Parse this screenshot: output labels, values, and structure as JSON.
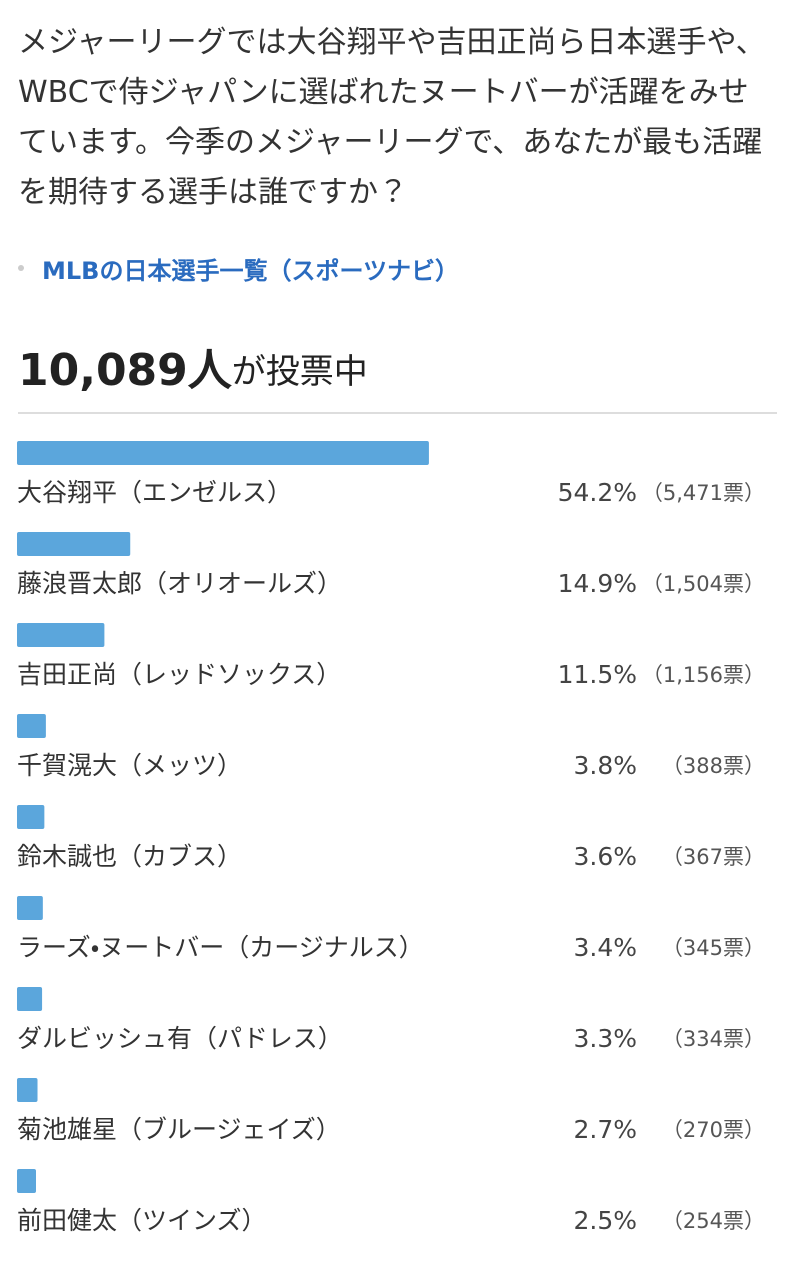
{
  "chart_data": {
    "type": "bar",
    "orientation": "horizontal",
    "title": "メジャーリーグでは大谷翔平や吉田正尚ら日本選手や、WBCで侍ジャパンに選ばれたヌートバーが活躍をみせています。今季のメジャーリーグで、あなたが最も活躍を期待する選手は誰ですか？",
    "link": "MLBの日本選手一覧（スポーツナビ）",
    "total_label": "10,089人",
    "total_suffix": "が投票中",
    "categories": [
      "大谷翔平（エンゼルス）",
      "藤浪晋太郎（オリオールズ）",
      "吉田正尚（レッドソックス）",
      "千賀滉大（メッツ）",
      "鈴木誠也（カブス）",
      "ラーズ・ヌートバー（カージナルス）",
      "ダルビッシュ有（パドレス）",
      "菊池雄星（ブルージェイズ）",
      "前田健太（ツインズ）"
    ],
    "values": [
      54.2,
      14.9,
      11.5,
      3.8,
      3.6,
      3.4,
      3.3,
      2.7,
      2.5
    ],
    "value_labels": [
      "54.2%",
      "14.9%",
      "11.5%",
      "3.8%",
      "3.6%",
      "3.4%",
      "3.3%",
      "2.7%",
      "2.5%"
    ],
    "vote_labels": [
      "（5,471票）",
      "（1,504票）",
      "（1,156票）",
      "（388票）",
      "（367票）",
      "（345票）",
      "（334票）",
      "（270票）",
      "（254票）"
    ],
    "color": "#5ba6dc",
    "xlim": [
      0,
      100
    ]
  }
}
